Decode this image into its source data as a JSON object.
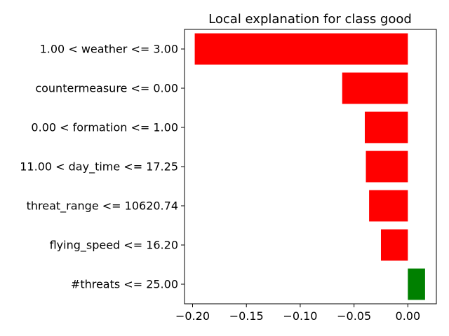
{
  "chart_data": {
    "type": "bar",
    "orientation": "horizontal",
    "title": "Local explanation for class good",
    "xlabel": "",
    "ylabel": "",
    "categories": [
      "1.00 < weather <= 3.00",
      "countermeasure <= 0.00",
      "0.00 < formation <= 1.00",
      "11.00 < day_time <= 17.25",
      "threat_range <= 10620.74",
      "flying_speed <= 16.20",
      "#threats <= 25.00"
    ],
    "values": [
      -0.198,
      -0.061,
      -0.04,
      -0.039,
      -0.036,
      -0.025,
      0.016
    ],
    "xlim": [
      -0.2075,
      0.0265
    ],
    "xticks": [
      -0.2,
      -0.15,
      -0.1,
      -0.05,
      0.0
    ],
    "xtick_labels": [
      "−0.20",
      "−0.15",
      "−0.10",
      "−0.05",
      "0.00"
    ],
    "colors": {
      "negative": "#ff0000",
      "positive": "#008000",
      "axis": "#000000"
    },
    "grid": false,
    "legend": "none"
  }
}
